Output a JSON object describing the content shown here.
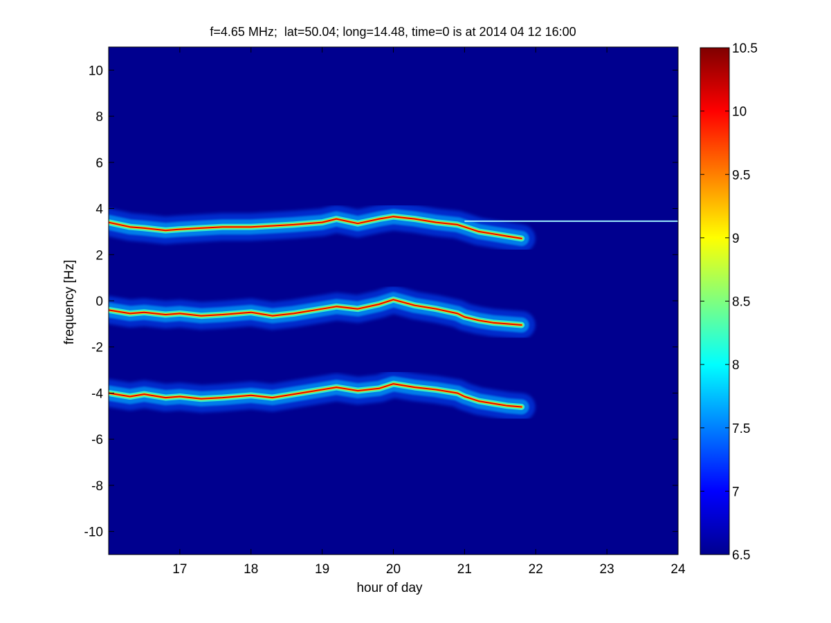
{
  "chart_data": {
    "type": "heatmap",
    "title": "f=4.65 MHz;  lat=50.04; long=14.48, time=0 is at 2014 04 12 16:00",
    "xlabel": "hour of day",
    "ylabel": "frequency [Hz]",
    "xlim": [
      16,
      24
    ],
    "ylim": [
      -11,
      11
    ],
    "xticks": [
      17,
      18,
      19,
      20,
      21,
      22,
      23,
      24
    ],
    "yticks": [
      -10,
      -8,
      -6,
      -4,
      -2,
      0,
      2,
      4,
      6,
      8,
      10
    ],
    "colorbar": {
      "colormap": "jet",
      "clim": [
        6.5,
        10.5
      ],
      "ticks": [
        6.5,
        7,
        7.5,
        8,
        8.5,
        9,
        9.5,
        10,
        10.5
      ]
    },
    "background_value": 6.5,
    "carrier_line": {
      "frequency": 3.45,
      "x_range": [
        21.0,
        24.0
      ]
    },
    "traces": [
      {
        "hours": [
          16.0,
          16.3,
          16.5,
          16.8,
          17.0,
          17.3,
          17.6,
          18.0,
          18.3,
          18.6,
          19.0,
          19.2,
          19.5,
          19.8,
          20.0,
          20.3,
          20.6,
          20.9,
          21.0,
          21.2,
          21.4,
          21.6,
          21.8
        ],
        "frequency": [
          3.4,
          3.2,
          3.15,
          3.05,
          3.1,
          3.15,
          3.2,
          3.2,
          3.25,
          3.3,
          3.4,
          3.55,
          3.35,
          3.55,
          3.65,
          3.55,
          3.4,
          3.3,
          3.2,
          3.0,
          2.9,
          2.8,
          2.7
        ]
      },
      {
        "hours": [
          16.0,
          16.3,
          16.5,
          16.8,
          17.0,
          17.3,
          17.6,
          18.0,
          18.3,
          18.6,
          19.0,
          19.2,
          19.5,
          19.8,
          20.0,
          20.3,
          20.6,
          20.9,
          21.0,
          21.2,
          21.4,
          21.6,
          21.8
        ],
        "frequency": [
          -0.4,
          -0.55,
          -0.5,
          -0.6,
          -0.55,
          -0.65,
          -0.6,
          -0.5,
          -0.65,
          -0.55,
          -0.35,
          -0.25,
          -0.35,
          -0.15,
          0.05,
          -0.2,
          -0.35,
          -0.55,
          -0.7,
          -0.85,
          -0.95,
          -1.0,
          -1.05
        ]
      },
      {
        "hours": [
          16.0,
          16.3,
          16.5,
          16.8,
          17.0,
          17.3,
          17.6,
          18.0,
          18.3,
          18.6,
          19.0,
          19.2,
          19.5,
          19.8,
          20.0,
          20.3,
          20.6,
          20.9,
          21.0,
          21.2,
          21.4,
          21.6,
          21.8
        ],
        "frequency": [
          -4.0,
          -4.15,
          -4.05,
          -4.2,
          -4.15,
          -4.25,
          -4.2,
          -4.1,
          -4.2,
          -4.05,
          -3.85,
          -3.75,
          -3.9,
          -3.8,
          -3.6,
          -3.75,
          -3.85,
          -4.0,
          -4.15,
          -4.35,
          -4.45,
          -4.55,
          -4.6
        ]
      }
    ]
  }
}
